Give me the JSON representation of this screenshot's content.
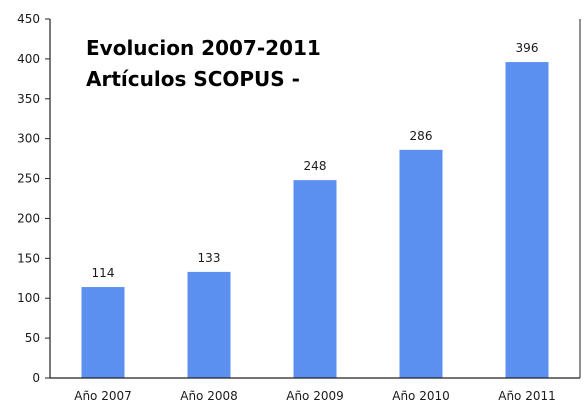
{
  "chart_data": {
    "type": "bar",
    "title_lines": [
      "Evolucion 2007-2011",
      "Artículos SCOPUS -"
    ],
    "categories": [
      "Año 2007",
      "Año 2008",
      "Año 2009",
      "Año 2010",
      "Año 2011"
    ],
    "values": [
      114,
      133,
      248,
      286,
      396
    ],
    "ylim": [
      0,
      450
    ],
    "yticks": [
      0,
      50,
      100,
      150,
      200,
      250,
      300,
      350,
      400,
      450
    ],
    "xlabel": "",
    "ylabel": "",
    "grid": false,
    "legend": "none",
    "bar_color": "#5b8ff0",
    "axis_color": "#222222"
  }
}
